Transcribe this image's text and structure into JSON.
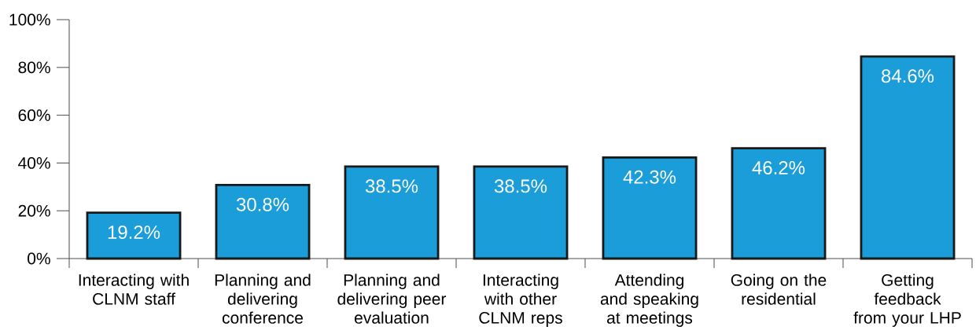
{
  "chart_data": {
    "type": "bar",
    "categories": [
      "Interacting with CLNM staff",
      "Planning and delivering conference",
      "Planning and delivering peer evaluation",
      "Interacting with other CLNM reps",
      "Attending and speaking at meetings",
      "Going on the residential",
      "Getting feedback from your LHP"
    ],
    "values": [
      19.2,
      30.8,
      38.5,
      38.5,
      42.3,
      46.2,
      84.6
    ],
    "value_labels": [
      "19.2%",
      "30.8%",
      "38.5%",
      "38.5%",
      "42.3%",
      "46.2%",
      "84.6%"
    ],
    "color": "#1a9dd9",
    "ylim": [
      0,
      100
    ],
    "yticks": [
      {
        "value": 0,
        "label": "0%"
      },
      {
        "value": 20,
        "label": "20%"
      },
      {
        "value": 40,
        "label": "40%"
      },
      {
        "value": 60,
        "label": "60%"
      },
      {
        "value": 80,
        "label": "80%"
      },
      {
        "value": 100,
        "label": "100%"
      }
    ]
  }
}
